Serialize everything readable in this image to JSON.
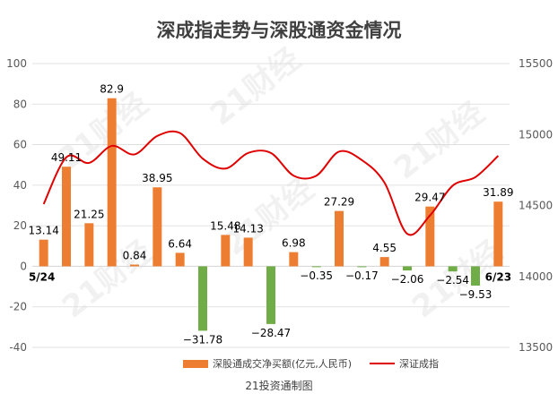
{
  "title": "深成指走势与深股通资金情况",
  "source_note": "21投资通制图",
  "watermark": "21财经",
  "colors": {
    "bar_up": "#ED7D31",
    "bar_down": "#70AD47",
    "line": "#E00000",
    "axis_text": "#595959",
    "grid": "#D9D9D9"
  },
  "chart_data": {
    "type": "bar+line",
    "start_label": "5/24",
    "end_label": "6/23",
    "left_axis": {
      "range": [
        -40,
        100
      ],
      "ticks": [
        "-40",
        "-20",
        "0",
        "20",
        "40",
        "60",
        "80",
        "100"
      ]
    },
    "right_axis": {
      "range": [
        13500,
        15500
      ],
      "ticks": [
        "13500",
        "14000",
        "14500",
        "15000",
        "15500"
      ]
    },
    "grid": true,
    "legend_position": "bottom",
    "series": [
      {
        "name": "深股通成交净买额(亿元,人民币)",
        "type": "bar",
        "axis": "left",
        "values": [
          13.14,
          49.11,
          21.25,
          82.9,
          0.84,
          38.95,
          6.64,
          -31.78,
          15.48,
          14.13,
          -28.47,
          6.98,
          -0.35,
          27.29,
          -0.17,
          4.55,
          -2.06,
          29.47,
          -2.54,
          -9.53,
          31.89
        ],
        "labels": [
          "13.14",
          "49.11",
          "21.25",
          "82.9",
          "0.84",
          "38.95",
          "6.64",
          "−31.78",
          "15.48",
          "14.13",
          "−28.47",
          "6.98",
          "−0.35",
          "27.29",
          "−0.17",
          "4.55",
          "−2.06",
          "29.47",
          "−2.54",
          "−9.53",
          "31.89"
        ]
      },
      {
        "name": "深证成指",
        "type": "line",
        "axis": "right",
        "values": [
          14510,
          14840,
          14800,
          14920,
          14860,
          14990,
          15010,
          14830,
          14760,
          14870,
          14870,
          14710,
          14710,
          14880,
          14820,
          14660,
          14300,
          14430,
          14640,
          14700,
          14850
        ]
      }
    ]
  }
}
